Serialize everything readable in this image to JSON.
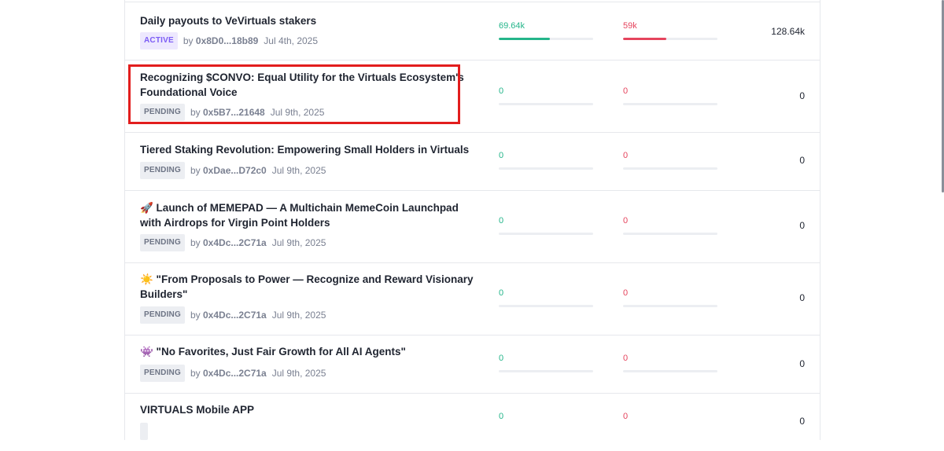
{
  "proposals": [
    {
      "title": "Daily payouts to VeVirtuals stakers",
      "status": "ACTIVE",
      "by_prefix": "by",
      "author": "0x8D0...18b89",
      "date": "Jul 4th, 2025",
      "for_value": "69.64k",
      "against_value": "59k",
      "total": "128.64k",
      "for_fraction": 0.54,
      "against_fraction": 0.46
    },
    {
      "title": "Recognizing $CONVO: Equal Utility for the Virtuals Ecosystem's Foundational Voice",
      "status": "PENDING",
      "by_prefix": "by",
      "author": "0x5B7...21648",
      "date": "Jul 9th, 2025",
      "for_value": "0",
      "against_value": "0",
      "total": "0",
      "for_fraction": 0,
      "against_fraction": 0
    },
    {
      "title": "Tiered Staking Revolution: Empowering Small Holders in Virtuals",
      "status": "PENDING",
      "by_prefix": "by",
      "author": "0xDae...D72c0",
      "date": "Jul 9th, 2025",
      "for_value": "0",
      "against_value": "0",
      "total": "0",
      "for_fraction": 0,
      "against_fraction": 0
    },
    {
      "title": "🚀 Launch of MEMEPAD — A Multichain MemeCoin Launchpad with Airdrops for Virgin Point Holders",
      "status": "PENDING",
      "by_prefix": "by",
      "author": "0x4Dc...2C71a",
      "date": "Jul 9th, 2025",
      "for_value": "0",
      "against_value": "0",
      "total": "0",
      "for_fraction": 0,
      "against_fraction": 0
    },
    {
      "title": "☀️ \"From Proposals to Power — Recognize and Reward Visionary Builders\"",
      "status": "PENDING",
      "by_prefix": "by",
      "author": "0x4Dc...2C71a",
      "date": "Jul 9th, 2025",
      "for_value": "0",
      "against_value": "0",
      "total": "0",
      "for_fraction": 0,
      "against_fraction": 0
    },
    {
      "title": "👾 \"No Favorites, Just Fair Growth for All AI Agents\"",
      "status": "PENDING",
      "by_prefix": "by",
      "author": "0x4Dc...2C71a",
      "date": "Jul 9th, 2025",
      "for_value": "0",
      "against_value": "0",
      "total": "0",
      "for_fraction": 0,
      "against_fraction": 0
    },
    {
      "title": "VIRTUALS Mobile APP",
      "status": "",
      "by_prefix": "",
      "author": "",
      "date": "",
      "for_value": "0",
      "against_value": "0",
      "total": "0",
      "for_fraction": 0,
      "against_fraction": 0
    }
  ],
  "colors": {
    "for": "#24b58a",
    "against": "#e5445d",
    "active_badge": "#7c5cf5",
    "pending_badge": "#6d7485",
    "highlight": "#e21d1d"
  }
}
